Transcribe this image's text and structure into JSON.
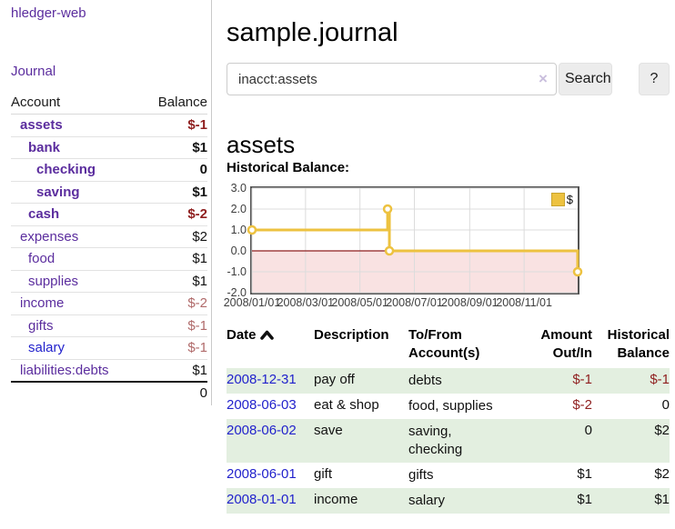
{
  "app": {
    "brand": "hledger-web",
    "nav_journal": "Journal"
  },
  "sidebar": {
    "header": {
      "account": "Account",
      "balance": "Balance"
    },
    "accounts": [
      {
        "name": "assets",
        "indent": 1,
        "balance": "$-1",
        "bold": true,
        "negative": true
      },
      {
        "name": "bank",
        "indent": 2,
        "balance": "$1",
        "bold": true,
        "negative": false
      },
      {
        "name": "checking",
        "indent": 3,
        "balance": "0",
        "bold": true,
        "negative": false
      },
      {
        "name": "saving",
        "indent": 3,
        "balance": "$1",
        "bold": true,
        "negative": false
      },
      {
        "name": "cash",
        "indent": 2,
        "balance": "$-2",
        "bold": true,
        "negative": true
      },
      {
        "name": "expenses",
        "indent": 1,
        "balance": "$2",
        "bold": false,
        "negative": false
      },
      {
        "name": "food",
        "indent": 2,
        "balance": "$1",
        "bold": false,
        "negative": false
      },
      {
        "name": "supplies",
        "indent": 2,
        "balance": "$1",
        "bold": false,
        "negative": false
      },
      {
        "name": "income",
        "indent": 1,
        "balance": "$-2",
        "bold": false,
        "negative": true
      },
      {
        "name": "gifts",
        "indent": 2,
        "balance": "$-1",
        "bold": false,
        "negative": true
      },
      {
        "name": "salary",
        "indent": 2,
        "balance": "$-1",
        "bold": false,
        "negative": true,
        "link_color": "blue"
      },
      {
        "name": "liabilities:debts",
        "indent": 1,
        "balance": "$1",
        "bold": false,
        "negative": false
      }
    ],
    "total": "0"
  },
  "header": {
    "title": "sample.journal"
  },
  "search": {
    "value": "inacct:assets",
    "clear_icon": "×",
    "button_label": "Search",
    "help_label": "?"
  },
  "account_page": {
    "heading": "assets",
    "chart_label": "Historical Balance:"
  },
  "chart_data": {
    "type": "line",
    "title": "Historical Balance",
    "steps": true,
    "series": [
      {
        "name": "$",
        "x": [
          "2008-01-01",
          "2008-06-01",
          "2008-06-03",
          "2008-12-31"
        ],
        "values": [
          1,
          2,
          0,
          -1
        ],
        "color": "#edc240"
      }
    ],
    "x_range": [
      "2008-01-01",
      "2008-12-31"
    ],
    "ylim": [
      -2,
      3
    ],
    "ytick_labels": [
      "3.0",
      "2.0",
      "1.0",
      "0.0",
      "-1.0",
      "-2.0"
    ],
    "ytick_values": [
      3,
      2,
      1,
      0,
      -1,
      -2
    ],
    "xticks": [
      {
        "date": "2008-01-01",
        "label": "2008/01/01"
      },
      {
        "date": "2008-03-01",
        "label": "2008/03/01"
      },
      {
        "date": "2008-05-01",
        "label": "2008/05/01"
      },
      {
        "date": "2008-07-01",
        "label": "2008/07/01"
      },
      {
        "date": "2008-09-01",
        "label": "2008/09/01"
      },
      {
        "date": "2008-11-01",
        "label": "2008/11/01"
      }
    ],
    "grid": true,
    "legend_position": "top-right",
    "colors": {
      "grid": "#dcdcdc",
      "zero_line": "#8f1f1f",
      "negative_region": "#f9e2e2",
      "marker_fill": "#ffffff",
      "plot_border": "#545454"
    }
  },
  "register": {
    "columns": [
      {
        "label": "Date",
        "sorted": "asc"
      },
      {
        "label": "Description"
      },
      {
        "label": "To/From Account(s)"
      },
      {
        "label": "Amount Out/In",
        "align": "right"
      },
      {
        "label": "Historical Balance",
        "align": "right"
      }
    ],
    "rows": [
      {
        "date": "2008-12-31",
        "description": "pay off",
        "accounts": "debts",
        "amount": "$-1",
        "balance": "$-1"
      },
      {
        "date": "2008-06-03",
        "description": "eat & shop",
        "accounts": "food, supplies",
        "amount": "$-2",
        "balance": "0"
      },
      {
        "date": "2008-06-02",
        "description": "save",
        "accounts": "saving, checking",
        "amount": "0",
        "balance": "$2"
      },
      {
        "date": "2008-06-01",
        "description": "gift",
        "accounts": "gifts",
        "amount": "$1",
        "balance": "$2"
      },
      {
        "date": "2008-01-01",
        "description": "income",
        "accounts": "salary",
        "amount": "$1",
        "balance": "$1"
      }
    ]
  },
  "colors": {
    "link_purple": "#5b2d9e",
    "link_blue": "#2222cc",
    "negative_bold": "#8f1f1f",
    "negative_soft": "#b06a6a",
    "row_green": "#e3efe0",
    "series_gold": "#edc240"
  }
}
